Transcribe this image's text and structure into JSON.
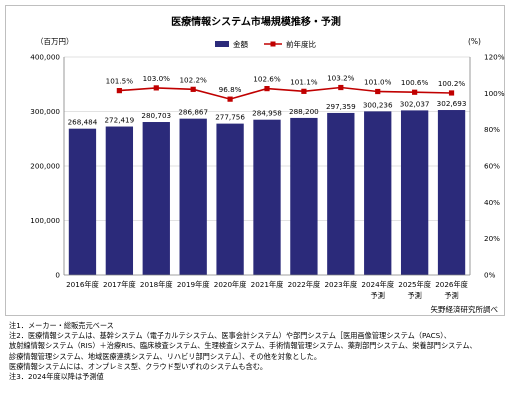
{
  "chart_data": {
    "type": "bar+line",
    "title": "医療情報システム市場規模推移・予測",
    "left_axis_unit": "（百万円）",
    "right_axis_unit": "(%)",
    "left_ylim": [
      0,
      400000
    ],
    "left_ticks": [
      "0",
      "100,000",
      "200,000",
      "300,000",
      "400,000"
    ],
    "right_ylim": [
      0,
      120
    ],
    "right_ticks": [
      "0%",
      "20%",
      "40%",
      "60%",
      "80%",
      "100%",
      "120%"
    ],
    "categories": [
      {
        "year": "2016年度",
        "sub": ""
      },
      {
        "year": "2017年度",
        "sub": ""
      },
      {
        "year": "2018年度",
        "sub": ""
      },
      {
        "year": "2019年度",
        "sub": ""
      },
      {
        "year": "2020年度",
        "sub": ""
      },
      {
        "year": "2021年度",
        "sub": ""
      },
      {
        "year": "2022年度",
        "sub": ""
      },
      {
        "year": "2023年度",
        "sub": ""
      },
      {
        "year": "2024年度",
        "sub": "予測"
      },
      {
        "year": "2025年度",
        "sub": "予測"
      },
      {
        "year": "2026年度",
        "sub": "予測"
      }
    ],
    "series": [
      {
        "name": "金額",
        "type": "bar",
        "axis": "left",
        "values": [
          268484,
          272419,
          280703,
          286867,
          277756,
          284958,
          288200,
          297359,
          300236,
          302037,
          302693
        ],
        "labels": [
          "268,484",
          "272,419",
          "280,703",
          "286,867",
          "277,756",
          "284,958",
          "288,200",
          "297,359",
          "300,236",
          "302,037",
          "302,693"
        ]
      },
      {
        "name": "前年度比",
        "type": "line",
        "axis": "right",
        "values": [
          null,
          101.5,
          103.0,
          102.2,
          96.8,
          102.6,
          101.1,
          103.2,
          101.0,
          100.6,
          100.2
        ],
        "labels": [
          "",
          "101.5%",
          "103.0%",
          "102.2%",
          "96.8%",
          "102.6%",
          "101.1%",
          "103.2%",
          "101.0%",
          "100.6%",
          "100.2%"
        ]
      }
    ],
    "legend_position": "top-center",
    "grid": "horizontal",
    "colors": {
      "bar": "#2b2a7a",
      "line": "#c00000",
      "grid": "#d9d9d9",
      "axis": "#808080"
    }
  },
  "source": "矢野経済研究所調べ",
  "notes": [
    "注1．メーカー・総販売元ベース",
    "注2．医療情報システムは、基幹システム（電子カルテシステム、医事会計システム）や部門システム［医用画像管理システム（PACS）、",
    "放射線情報システム（RIS）＋治療RIS、臨床検査システム、生理検査システム、手術情報管理システム、薬剤部門システム、栄養部門システム、",
    "診療情報管理システム、地域医療連携システム、リハビリ部門システム］、その他を対象とした。",
    "医療情報システムには、オンプレミス型、クラウド型いずれのシステムも含む。",
    "注3．2024年度以降は予測値"
  ]
}
